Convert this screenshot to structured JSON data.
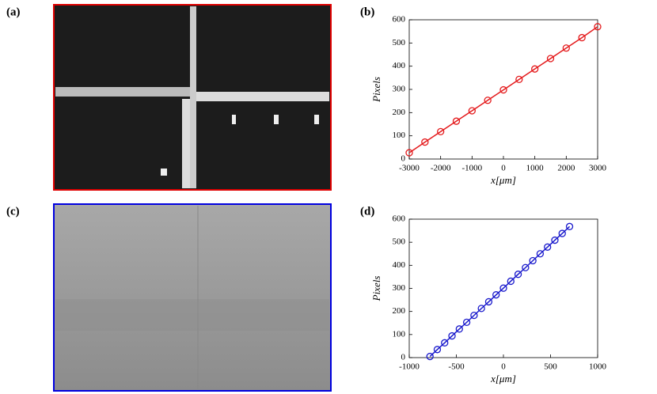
{
  "panels": [
    "(a)",
    "(b)",
    "(c)",
    "(d)"
  ],
  "chart_data": [
    {
      "type": "line",
      "xlabel": "x[μm]",
      "ylabel": "Pixels",
      "x": [
        -3000,
        -2500,
        -2000,
        -1500,
        -1000,
        -500,
        0,
        500,
        1000,
        1500,
        2000,
        2500,
        3000
      ],
      "series": [
        {
          "color": "#e41a1c",
          "values": [
            27,
            73,
            118,
            163,
            208,
            253,
            298,
            343,
            388,
            433,
            478,
            523,
            570
          ]
        }
      ],
      "xlim": [
        -3000,
        3000
      ],
      "xticks": [
        -3000,
        -2000,
        -1000,
        0,
        1000,
        2000,
        3000
      ],
      "ylim": [
        0,
        600
      ],
      "yticks": [
        0,
        100,
        200,
        300,
        400,
        500,
        600
      ]
    },
    {
      "type": "line",
      "xlabel": "x[μm]",
      "ylabel": "Pixels",
      "x": [
        -780,
        -702,
        -624,
        -546,
        -468,
        -390,
        -312,
        -234,
        -156,
        -78,
        0,
        78,
        156,
        234,
        312,
        390,
        468,
        546,
        624,
        702
      ],
      "series": [
        {
          "color": "#1a1acc",
          "values": [
            5,
            35,
            64,
            94,
            124,
            153,
            183,
            213,
            242,
            272,
            301,
            331,
            361,
            390,
            420,
            450,
            479,
            509,
            538,
            568
          ]
        }
      ],
      "xlim": [
        -1000,
        1000
      ],
      "xticks": [
        -1000,
        -500,
        0,
        500,
        1000
      ],
      "ylim": [
        0,
        600
      ],
      "yticks": [
        0,
        100,
        200,
        300,
        400,
        500,
        600
      ]
    }
  ]
}
